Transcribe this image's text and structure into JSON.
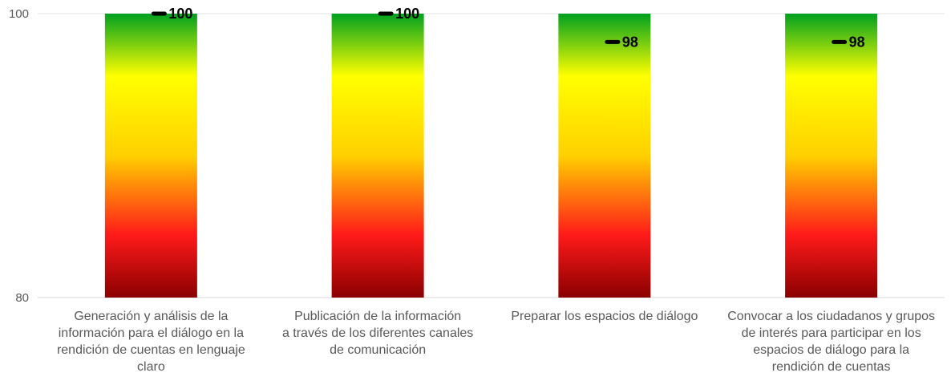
{
  "chart_data": {
    "type": "bar",
    "categories": [
      [
        "Generación y análisis de la",
        "información para el diálogo en la",
        "rendición de cuentas en lenguaje",
        "claro"
      ],
      [
        "Publicación de la información",
        "a través de los diferentes canales",
        "de comunicación"
      ],
      [
        "Preparar los espacios de diálogo"
      ],
      [
        "Convocar a los ciudadanos y grupos",
        "de interés para participar en los",
        "espacios de diálogo para la",
        "rendición de cuentas"
      ]
    ],
    "series": [
      {
        "values": [
          100,
          100,
          100,
          100
        ],
        "fill": "gradient"
      },
      {
        "values": [
          100,
          100,
          98,
          98
        ],
        "marker": "dash",
        "labels": [
          "100",
          "100",
          "98",
          "98"
        ]
      }
    ],
    "yticks": [
      "100",
      "80"
    ],
    "ylim": [
      80,
      100
    ],
    "gradient_colors": [
      "#00a020",
      "#ffff00",
      "#ff1a1a",
      "#8a0000"
    ],
    "grid": false,
    "legend": "none"
  }
}
